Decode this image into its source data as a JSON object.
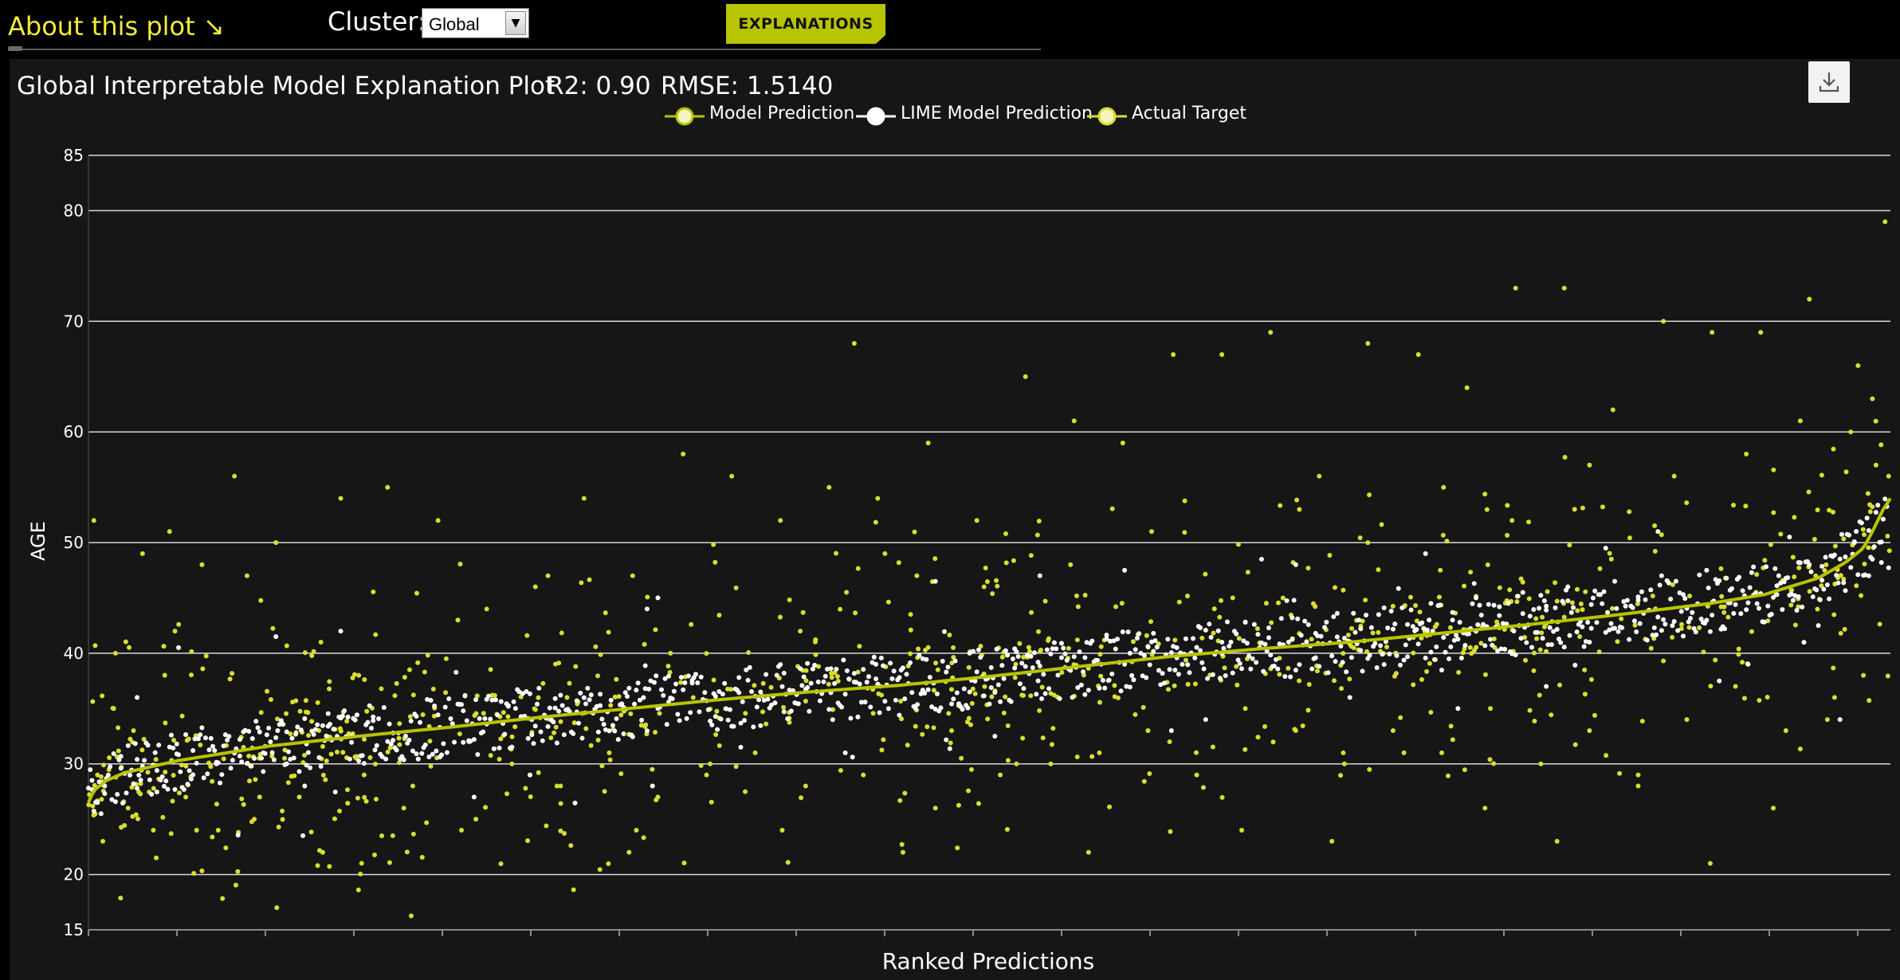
{
  "header": {
    "about_label": "About this plot ↘",
    "cluster_label": "Cluster:",
    "cluster_value": "Global",
    "explanations_label": "EXPLANATIONS"
  },
  "metrics": {
    "title": "Global Interpretable Model Explanation Plot",
    "r2": "R2: 0.90",
    "rmse": "RMSE: 1.5140"
  },
  "icons": {
    "download": "download-icon",
    "dropdown": "chevron-down-icon"
  },
  "colors": {
    "model_prediction": "#b8c400",
    "lime_prediction": "#ffffff",
    "actual_target": "#d9df2c",
    "background": "#161616",
    "accent": "#b8c400"
  },
  "chart_data": {
    "type": "scatter",
    "title": "Global Interpretable Model Explanation Plot",
    "xlabel": "Ranked Predictions",
    "ylabel": "AGE",
    "ylim": [
      15,
      85
    ],
    "yticks": [
      15,
      20,
      30,
      40,
      50,
      60,
      70,
      80,
      85
    ],
    "grid": true,
    "legend": [
      "Model Prediction",
      "LIME Model Prediction",
      "Actual Target"
    ],
    "legend_placement": "top-center",
    "x_count": 1000,
    "series": [
      {
        "name": "Model Prediction",
        "style": "line",
        "x": [
          0,
          3,
          10,
          20,
          50,
          100,
          150,
          200,
          250,
          300,
          350,
          400,
          450,
          500,
          550,
          600,
          650,
          700,
          750,
          800,
          850,
          900,
          930,
          960,
          975,
          985,
          990,
          993,
          996,
          1000
        ],
        "values": [
          26.5,
          27.6,
          28.5,
          29.2,
          30.3,
          31.6,
          32.5,
          33.3,
          34.2,
          35.0,
          35.8,
          36.5,
          37.1,
          37.9,
          38.8,
          39.7,
          40.4,
          41.0,
          41.8,
          42.6,
          43.5,
          44.5,
          45.3,
          46.8,
          48.2,
          49.5,
          51.0,
          52.0,
          53.0,
          54.0
        ]
      },
      {
        "name": "LIME Model Prediction",
        "style": "points",
        "x": [
          2,
          9,
          18,
          27,
          38,
          49,
          58,
          71,
          84,
          97,
          110,
          121,
          133,
          146,
          158,
          169,
          182,
          195,
          208,
          221,
          233,
          246,
          259,
          271,
          284,
          297,
          309,
          322,
          335,
          348,
          361,
          373,
          386,
          399,
          412,
          425,
          437,
          450,
          463,
          476,
          489,
          501,
          514,
          527,
          540,
          553,
          565,
          578,
          591,
          604,
          617,
          629,
          642,
          655,
          668,
          681,
          693,
          706,
          719,
          732,
          745,
          757,
          770,
          783,
          796,
          809,
          821,
          834,
          847,
          860,
          873,
          885,
          898,
          911,
          924,
          937,
          949,
          962,
          975,
          988,
          995,
          27,
          104,
          214,
          316,
          420,
          528,
          601,
          670,
          760,
          842,
          905,
          944,
          972,
          50,
          120,
          140,
          245,
          310,
          362,
          470,
          503,
          575,
          620,
          651,
          700,
          742,
          809,
          871,
          921,
          980
        ],
        "values": [
          28.5,
          28.0,
          29.6,
          30.4,
          29.4,
          30.9,
          31.2,
          30.0,
          32.2,
          31.0,
          32.9,
          31.8,
          33.4,
          32.5,
          33.9,
          32.8,
          34.3,
          33.3,
          34.8,
          33.6,
          35.2,
          34.0,
          35.9,
          34.7,
          36.3,
          35.1,
          36.8,
          35.6,
          37.3,
          36.1,
          37.8,
          36.5,
          38.2,
          36.9,
          38.6,
          37.4,
          39.0,
          37.8,
          39.5,
          38.3,
          40.0,
          38.7,
          40.4,
          39.2,
          40.9,
          39.6,
          41.3,
          40.0,
          41.8,
          40.5,
          42.3,
          41.0,
          42.8,
          41.4,
          43.2,
          41.8,
          43.6,
          42.2,
          44.1,
          42.6,
          44.5,
          43.0,
          45.0,
          43.4,
          45.5,
          43.9,
          46.0,
          44.4,
          46.5,
          44.8,
          47.0,
          45.3,
          47.5,
          45.7,
          47.8,
          46.1,
          48.2,
          46.6,
          48.7,
          47.0,
          48.2,
          36.0,
          41.5,
          27.0,
          45.0,
          31.0,
          47.0,
          33.0,
          48.0,
          35.0,
          49.5,
          37.5,
          50.5,
          34.0,
          40.5,
          28.0,
          42.0,
          29.0,
          44.0,
          31.5,
          46.5,
          32.5,
          47.5,
          34.0,
          48.5,
          36.0,
          49.0,
          37.0,
          51.0,
          39.0,
          50.0
        ],
        "note_count": 111
      },
      {
        "name": "Actual Target",
        "style": "points",
        "x": [
          3,
          8,
          14,
          22,
          30,
          36,
          45,
          54,
          63,
          72,
          81,
          92,
          104,
          117,
          129,
          140,
          153,
          166,
          180,
          194,
          207,
          221,
          235,
          248,
          262,
          275,
          289,
          302,
          316,
          330,
          343,
          357,
          370,
          384,
          398,
          411,
          425,
          438,
          452,
          466,
          479,
          493,
          506,
          520,
          534,
          547,
          561,
          574,
          588,
          602,
          615,
          629,
          642,
          656,
          670,
          683,
          697,
          710,
          724,
          738,
          751,
          765,
          778,
          792,
          806,
          819,
          833,
          846,
          860,
          874,
          887,
          901,
          914,
          928,
          942,
          955,
          969,
          982,
          992,
          997,
          5,
          25,
          60,
          95,
          130,
          175,
          215,
          260,
          300,
          345,
          385,
          430,
          470,
          515,
          555,
          600,
          640,
          690,
          730,
          775,
          815,
          860,
          900,
          935,
          965,
          985,
          15,
          48,
          88,
          150,
          205,
          255,
          323,
          395,
          442,
          497,
          545,
          590,
          635,
          672,
          710,
          752,
          790,
          833,
          880,
          920,
          950,
          978,
          990,
          999
        ],
        "values": [
          52.0,
          23.0,
          35.0,
          26.0,
          49.0,
          24.0,
          51.0,
          27.0,
          48.0,
          24.0,
          56.0,
          25.0,
          50.0,
          27.0,
          41.0,
          54.0,
          29.0,
          55.0,
          28.0,
          52.0,
          24.0,
          44.0,
          30.0,
          46.0,
          28.0,
          54.0,
          31.0,
          47.0,
          27.0,
          58.0,
          29.0,
          56.0,
          31.0,
          52.0,
          28.0,
          55.0,
          68.0,
          54.0,
          22.0,
          59.0,
          33.0,
          52.0,
          29.0,
          65.0,
          30.0,
          61.0,
          31.0,
          59.0,
          33.0,
          67.0,
          29.0,
          67.0,
          35.0,
          69.0,
          33.0,
          56.0,
          30.0,
          68.0,
          33.0,
          67.0,
          31.0,
          64.0,
          35.0,
          73.0,
          30.0,
          73.0,
          33.0,
          62.0,
          28.0,
          70.0,
          34.0,
          69.0,
          37.0,
          69.0,
          33.0,
          72.0,
          36.0,
          66.0,
          57.0,
          79.0,
          29.0,
          33.0,
          24.0,
          27.0,
          22.0,
          26.0,
          25.0,
          28.0,
          22.0,
          30.0,
          24.0,
          29.0,
          26.0,
          30.0,
          22.0,
          32.0,
          24.0,
          23.0,
          31.0,
          26.0,
          23.0,
          29.0,
          21.0,
          26.0,
          34.0,
          38.0,
          40.0,
          42.0,
          47.0,
          38.0,
          43.0,
          47.0,
          40.0,
          42.0,
          49.0,
          46.0,
          48.0,
          51.0,
          45.0,
          53.0,
          50.0,
          55.0,
          52.0,
          57.0,
          56.0,
          58.0,
          61.0,
          60.0,
          63.0,
          56.0
        ],
        "note_count": 130
      }
    ]
  },
  "xaxis": {
    "label": "Ranked Predictions"
  },
  "yaxis": {
    "label": "AGE"
  }
}
